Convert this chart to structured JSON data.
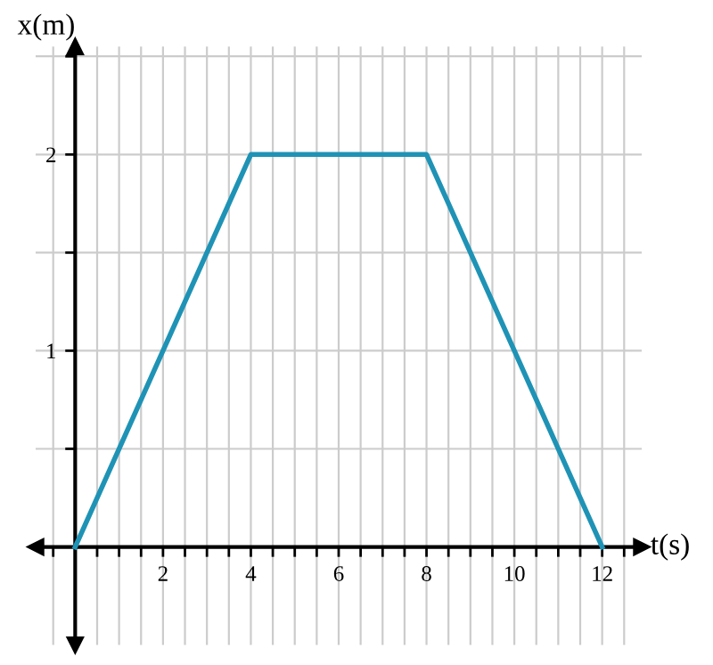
{
  "chart_data": {
    "type": "line",
    "xlabel": "t(s)",
    "ylabel": "x(m)",
    "x": [
      0,
      4,
      8,
      12
    ],
    "series": [
      {
        "color": "#1f93b5",
        "values": [
          0,
          2,
          2,
          0
        ]
      }
    ],
    "xlim": [
      -0.9,
      12.9
    ],
    "ylim": [
      -0.5,
      2.55
    ],
    "xticks": [
      {
        "value": -0.5,
        "label": null
      },
      {
        "value": 0.5,
        "label": null
      },
      {
        "value": 1,
        "label": null
      },
      {
        "value": 1.5,
        "label": null
      },
      2,
      {
        "value": 2.5,
        "label": null
      },
      {
        "value": 3,
        "label": null
      },
      {
        "value": 3.5,
        "label": null
      },
      4,
      {
        "value": 4.5,
        "label": null
      },
      {
        "value": 5,
        "label": null
      },
      {
        "value": 5.5,
        "label": null
      },
      6,
      {
        "value": 6.5,
        "label": null
      },
      {
        "value": 7,
        "label": null
      },
      {
        "value": 7.5,
        "label": null
      },
      8,
      {
        "value": 8.5,
        "label": null
      },
      {
        "value": 9,
        "label": null
      },
      {
        "value": 9.5,
        "label": null
      },
      10,
      {
        "value": 10.5,
        "label": null
      },
      {
        "value": 11,
        "label": null
      },
      {
        "value": 11.5,
        "label": null
      },
      12,
      {
        "value": 12.5,
        "label": null
      }
    ],
    "yticks": [
      {
        "value": 0.5,
        "label": null
      },
      1,
      {
        "value": 1.5,
        "label": null
      },
      2,
      {
        "value": 2.5,
        "label": null
      }
    ],
    "grid": true,
    "marker": "none",
    "line_style": "solid"
  }
}
